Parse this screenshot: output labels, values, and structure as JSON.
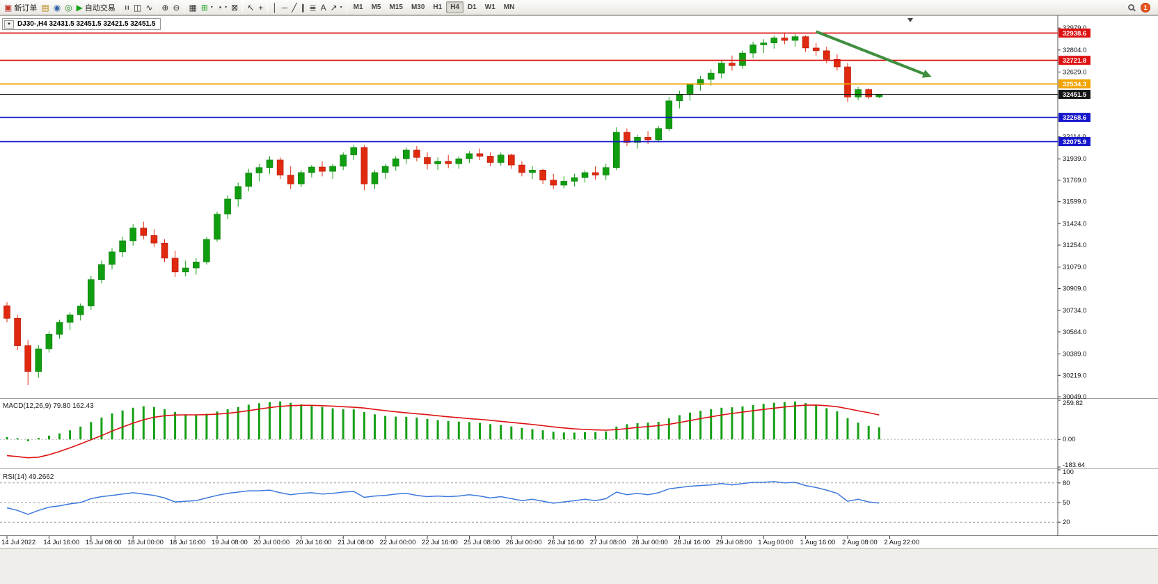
{
  "toolbar": {
    "items": [
      {
        "name": "new-order",
        "glyph": "▣",
        "color": "#c0392b",
        "label": "新订单"
      },
      {
        "name": "charts-grid",
        "glyph": "▤",
        "color": "#b8860b"
      },
      {
        "name": "market-watch",
        "glyph": "◉",
        "color": "#2f5fa5"
      },
      {
        "name": "navigator",
        "glyph": "◎",
        "color": "#2e8b2e"
      },
      {
        "name": "auto-trading",
        "glyph": "▶",
        "color": "#18a018",
        "label": "自动交易"
      },
      {
        "sep": true
      },
      {
        "name": "bars-chart-type",
        "glyph": "≡",
        "rot": true
      },
      {
        "name": "candles-chart-type",
        "glyph": "◫"
      },
      {
        "name": "line-chart-type",
        "glyph": "∿"
      },
      {
        "sep": true
      },
      {
        "name": "zoom-in",
        "glyph": "⊕"
      },
      {
        "name": "zoom-out",
        "glyph": "⊖"
      },
      {
        "sep": true
      },
      {
        "name": "tile-windows",
        "glyph": "▦"
      },
      {
        "name": "add-indicator",
        "glyph": "⊞",
        "color": "#18a018",
        "caret": true
      },
      {
        "name": "periods",
        "glyph": "◔",
        "caret": true
      },
      {
        "name": "templates",
        "glyph": "⊠"
      },
      {
        "sep": true
      },
      {
        "name": "cursor-tool",
        "glyph": "↖"
      },
      {
        "name": "crosshair-tool",
        "glyph": "+"
      },
      {
        "sep": true
      },
      {
        "name": "vertical-line-tool",
        "glyph": "│"
      },
      {
        "name": "horizontal-line-tool",
        "glyph": "─"
      },
      {
        "name": "trendline-tool",
        "glyph": "╱"
      },
      {
        "name": "channel-tool",
        "glyph": "∥"
      },
      {
        "name": "fibonacci-tool",
        "glyph": "≣"
      },
      {
        "name": "text-tool",
        "glyph": "A"
      },
      {
        "name": "arrows-tool",
        "glyph": "↗",
        "caret": true
      },
      {
        "sep": true
      }
    ],
    "timeframes": [
      "M1",
      "M5",
      "M15",
      "M30",
      "H1",
      "H4",
      "D1",
      "W1",
      "MN"
    ],
    "active_timeframe": "H4",
    "notification_count": "1"
  },
  "chart": {
    "title": "DJ30-,H4 32431.5 32451.5 32421.5 32451.5",
    "dropdown_glyph": "▼",
    "symbol": "DJ30-",
    "timeframe": "H4",
    "ohlc": {
      "open": "32431.5",
      "high": "32451.5",
      "low": "32421.5",
      "close": "32451.5"
    }
  },
  "chart_data": {
    "type": "candlestick",
    "title": "DJ30-,H4",
    "x_axis_labels": [
      "14 Jul 2022",
      "14 Jul 16:00",
      "15 Jul 08:00",
      "18 Jul 00:00",
      "18 Jul 16:00",
      "19 Jul 08:00",
      "20 Jul 00:00",
      "20 Jul 16:00",
      "21 Jul 08:00",
      "22 Jul 00:00",
      "22 Jul 16:00",
      "25 Jul 08:00",
      "26 Jul 00:00",
      "26 Jul 16:00",
      "27 Jul 08:00",
      "28 Jul 00:00",
      "28 Jul 16:00",
      "29 Jul 08:00",
      "1 Aug 00:00",
      "1 Aug 16:00",
      "2 Aug 08:00",
      "2 Aug 22:00"
    ],
    "price_axis_labels": [
      32979.0,
      32804.0,
      32629.0,
      32114.0,
      31939.0,
      31769.0,
      31599.0,
      31424.0,
      31254.0,
      31079.0,
      30909.0,
      30734.0,
      30564.0,
      30389.0,
      30219.0,
      30049.0
    ],
    "candles_ohlc": [
      [
        30772,
        30800,
        30640,
        30672
      ],
      [
        30672,
        30700,
        30420,
        30455
      ],
      [
        30455,
        30500,
        30143,
        30250
      ],
      [
        30250,
        30460,
        30200,
        30430
      ],
      [
        30430,
        30570,
        30400,
        30545
      ],
      [
        30545,
        30660,
        30510,
        30640
      ],
      [
        30640,
        30720,
        30580,
        30700
      ],
      [
        30700,
        30790,
        30655,
        30770
      ],
      [
        30770,
        31010,
        30740,
        30980
      ],
      [
        30980,
        31130,
        30950,
        31100
      ],
      [
        31100,
        31230,
        31060,
        31200
      ],
      [
        31200,
        31320,
        31160,
        31288
      ],
      [
        31288,
        31420,
        31250,
        31390
      ],
      [
        31390,
        31440,
        31300,
        31330
      ],
      [
        31330,
        31380,
        31240,
        31270
      ],
      [
        31270,
        31300,
        31120,
        31150
      ],
      [
        31150,
        31210,
        31000,
        31040
      ],
      [
        31040,
        31130,
        31005,
        31072
      ],
      [
        31072,
        31150,
        31020,
        31120
      ],
      [
        31120,
        31320,
        31100,
        31300
      ],
      [
        31300,
        31520,
        31280,
        31500
      ],
      [
        31500,
        31650,
        31460,
        31620
      ],
      [
        31620,
        31750,
        31560,
        31720
      ],
      [
        31720,
        31860,
        31680,
        31827
      ],
      [
        31827,
        31900,
        31760,
        31870
      ],
      [
        31870,
        31960,
        31820,
        31930
      ],
      [
        31930,
        31950,
        31780,
        31810
      ],
      [
        31810,
        31880,
        31700,
        31740
      ],
      [
        31740,
        31850,
        31715,
        31830
      ],
      [
        31830,
        31890,
        31790,
        31874
      ],
      [
        31874,
        31920,
        31800,
        31840
      ],
      [
        31840,
        31900,
        31780,
        31880
      ],
      [
        31880,
        31990,
        31850,
        31970
      ],
      [
        31970,
        32050,
        31930,
        32030
      ],
      [
        32030,
        32050,
        31690,
        31740
      ],
      [
        31740,
        31850,
        31700,
        31830
      ],
      [
        31830,
        31900,
        31780,
        31880
      ],
      [
        31880,
        31960,
        31845,
        31940
      ],
      [
        31940,
        32030,
        31900,
        32010
      ],
      [
        32010,
        32040,
        31920,
        31950
      ],
      [
        31950,
        31990,
        31855,
        31899
      ],
      [
        31899,
        31950,
        31850,
        31920
      ],
      [
        31920,
        31970,
        31865,
        31900
      ],
      [
        31900,
        31960,
        31860,
        31940
      ],
      [
        31940,
        32000,
        31905,
        31980
      ],
      [
        31980,
        32020,
        31930,
        31960
      ],
      [
        31960,
        31990,
        31880,
        31910
      ],
      [
        31910,
        31990,
        31885,
        31970
      ],
      [
        31970,
        31980,
        31860,
        31890
      ],
      [
        31890,
        31920,
        31800,
        31830
      ],
      [
        31830,
        31880,
        31780,
        31850
      ],
      [
        31850,
        31860,
        31740,
        31770
      ],
      [
        31770,
        31820,
        31700,
        31730
      ],
      [
        31730,
        31800,
        31705,
        31761
      ],
      [
        31761,
        31820,
        31720,
        31790
      ],
      [
        31790,
        31850,
        31750,
        31830
      ],
      [
        31830,
        31880,
        31775,
        31810
      ],
      [
        31810,
        31900,
        31770,
        31870
      ],
      [
        31870,
        32190,
        31850,
        32150
      ],
      [
        32150,
        32180,
        32040,
        32070
      ],
      [
        32070,
        32130,
        32020,
        32110
      ],
      [
        32110,
        32160,
        32055,
        32090
      ],
      [
        32090,
        32200,
        32070,
        32180
      ],
      [
        32180,
        32430,
        32160,
        32400
      ],
      [
        32400,
        32480,
        32340,
        32450
      ],
      [
        32450,
        32540,
        32400,
        32529
      ],
      [
        32529,
        32600,
        32480,
        32570
      ],
      [
        32570,
        32650,
        32520,
        32620
      ],
      [
        32620,
        32720,
        32580,
        32700
      ],
      [
        32700,
        32760,
        32640,
        32680
      ],
      [
        32680,
        32800,
        32655,
        32780
      ],
      [
        32780,
        32870,
        32740,
        32845
      ],
      [
        32845,
        32890,
        32780,
        32860
      ],
      [
        32860,
        32920,
        32815,
        32900
      ],
      [
        32900,
        32943,
        32850,
        32880
      ],
      [
        32880,
        32930,
        32830,
        32910
      ],
      [
        32910,
        32920,
        32790,
        32820
      ],
      [
        32820,
        32860,
        32760,
        32798
      ],
      [
        32798,
        32830,
        32700,
        32730
      ],
      [
        32730,
        32770,
        32640,
        32670
      ],
      [
        32670,
        32700,
        32390,
        32430
      ],
      [
        32430,
        32510,
        32405,
        32490
      ],
      [
        32490,
        32500,
        32415,
        32431.5
      ],
      [
        32431.5,
        32451.5,
        32421.5,
        32451.5
      ]
    ],
    "bull_color": "#109e10",
    "bear_color": "#e02a10",
    "horizontal_lines": [
      {
        "price": 32938.6,
        "color": "#dd1111"
      },
      {
        "price": 32721.8,
        "color": "#dd1111"
      },
      {
        "price": 32534.3,
        "color": "#f2a300"
      },
      {
        "price": 32451.5,
        "color": "#141414",
        "current_price": true
      },
      {
        "price": 32268.6,
        "color": "#1515cc"
      },
      {
        "price": 32075.9,
        "color": "#1515cc"
      }
    ],
    "trend_arrow": {
      "color": "#3f8f3f",
      "from": {
        "index": 77,
        "price": 32950
      },
      "to": {
        "index": 88,
        "price": 32590
      }
    },
    "indicators": [
      {
        "id": "macd",
        "name": "MACD(12,26,9)",
        "values_text": "79.80 162.43",
        "axis_values": [
          259.82,
          0,
          -183.64
        ],
        "histogram_color": "#16a016",
        "signal_color": "#dd1111",
        "histogram": [
          15,
          8,
          -12,
          10,
          25,
          40,
          60,
          85,
          115,
          145,
          172,
          192,
          210,
          220,
          215,
          200,
          182,
          166,
          160,
          170,
          185,
          200,
          215,
          230,
          240,
          248,
          252,
          243,
          232,
          226,
          216,
          206,
          200,
          199,
          181,
          166,
          156,
          151,
          150,
          145,
          136,
          128,
          122,
          118,
          115,
          110,
          101,
          95,
          86,
          76,
          68,
          60,
          51,
          46,
          45,
          48,
          49,
          53,
          85,
          101,
          108,
          111,
          116,
          140,
          161,
          178,
          190,
          200,
          210,
          213,
          219,
          228,
          236,
          243,
          248,
          251,
          241,
          229,
          207,
          186,
          141,
          111,
          90,
          79.8
        ],
        "signal": [
          -108,
          -114,
          -122,
          -118,
          -102,
          -80,
          -56,
          -30,
          -2,
          25,
          55,
          82,
          108,
          130,
          147,
          157,
          162,
          163,
          163,
          164,
          168,
          173,
          181,
          191,
          201,
          211,
          219,
          224,
          226,
          226,
          224,
          221,
          217,
          213,
          208,
          199,
          191,
          183,
          176,
          170,
          164,
          157,
          150,
          144,
          138,
          133,
          127,
          120,
          113,
          106,
          99,
          91,
          83,
          76,
          70,
          66,
          63,
          61,
          65,
          72,
          79,
          85,
          91,
          100,
          112,
          125,
          138,
          150,
          162,
          172,
          181,
          190,
          199,
          207,
          215,
          222,
          227,
          228,
          224,
          217,
          204,
          190,
          177,
          162.43
        ]
      },
      {
        "id": "rsi",
        "name": "RSI(14)",
        "values_text": "49.2662",
        "axis_values": [
          100,
          80,
          50,
          20
        ],
        "levels": [
          80,
          50,
          20
        ],
        "line_color": "#3c78dc",
        "values": [
          42,
          38,
          32,
          38,
          43,
          45,
          48,
          50,
          56,
          59,
          61,
          63,
          65,
          63,
          61,
          57,
          51,
          52,
          53,
          57,
          61,
          64,
          66,
          68,
          68,
          69,
          65,
          62,
          64,
          65,
          63,
          64,
          66,
          67,
          58,
          60,
          61,
          63,
          64,
          61,
          59,
          60,
          59,
          60,
          62,
          60,
          57,
          59,
          56,
          53,
          55,
          52,
          49,
          51,
          53,
          55,
          53,
          56,
          66,
          62,
          64,
          62,
          65,
          71,
          73,
          75,
          76,
          77,
          79,
          77,
          79,
          81,
          81,
          82,
          80,
          81,
          76,
          73,
          69,
          64,
          52,
          55,
          51,
          49.27
        ]
      }
    ]
  }
}
